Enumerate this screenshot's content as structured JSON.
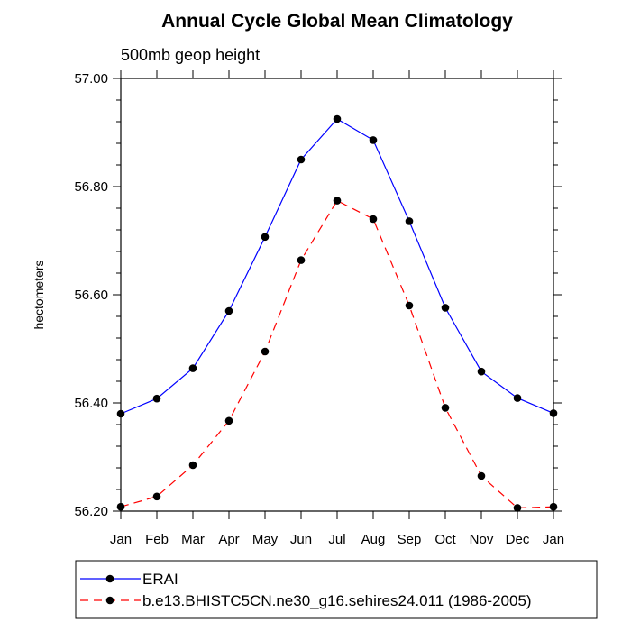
{
  "chart_data": {
    "type": "line",
    "title": "Annual Cycle Global Mean Climatology",
    "subtitle": "500mb geop height",
    "xlabel": "",
    "ylabel": "hectometers",
    "categories": [
      "Jan",
      "Feb",
      "Mar",
      "Apr",
      "May",
      "Jun",
      "Jul",
      "Aug",
      "Sep",
      "Oct",
      "Nov",
      "Dec",
      "Jan"
    ],
    "ylim": [
      56.2,
      57.0
    ],
    "yticks": [
      "56.20",
      "56.40",
      "56.60",
      "56.80",
      "57.00"
    ],
    "legend_position": "bottom",
    "series": [
      {
        "name": "ERAI",
        "color": "#0000ff",
        "dash": "solid",
        "marker": "dot",
        "values": [
          56.38,
          56.408,
          56.464,
          56.57,
          56.707,
          56.85,
          56.925,
          56.886,
          56.736,
          56.576,
          56.458,
          56.409,
          56.381
        ]
      },
      {
        "name": "b.e13.BHISTC5CN.ne30_g16.sehires24.011 (1986-2005)",
        "color": "#ff0000",
        "dash": "dashed",
        "marker": "dot",
        "values": [
          56.208,
          56.227,
          56.285,
          56.367,
          56.495,
          56.664,
          56.774,
          56.74,
          56.58,
          56.391,
          56.265,
          56.206,
          56.208
        ]
      }
    ]
  }
}
